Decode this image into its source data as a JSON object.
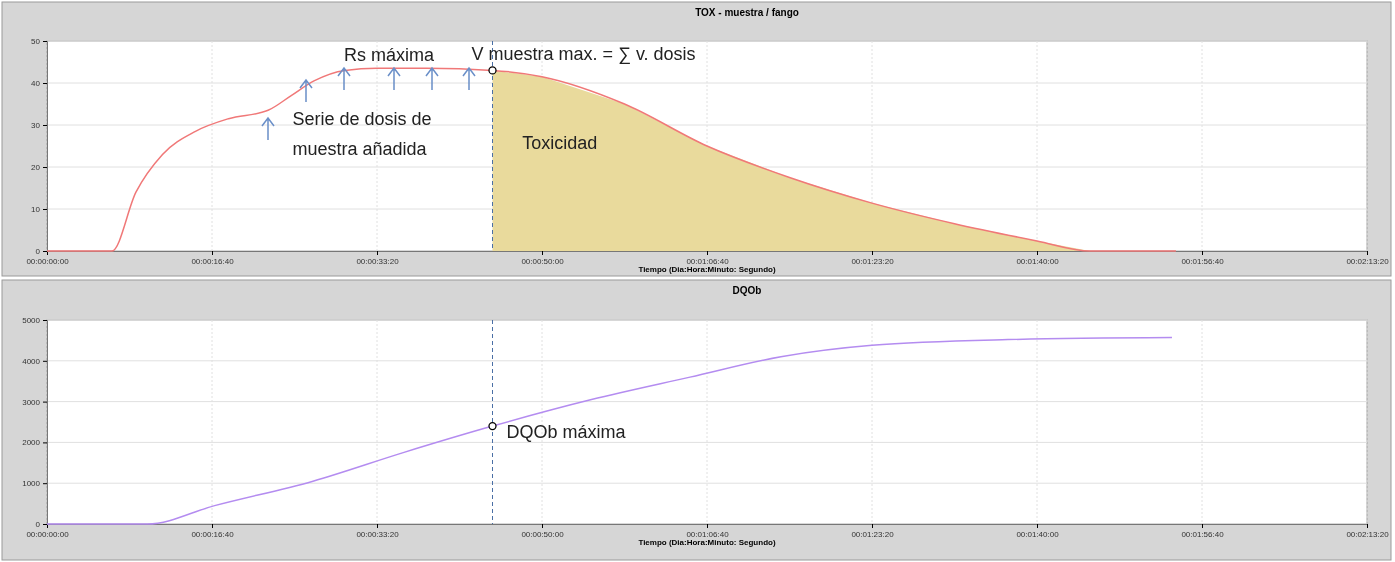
{
  "chart_data": [
    {
      "type": "line",
      "title": "TOX -  muestra / fango",
      "xlabel": "Tiempo (Dia:Hora:Minuto: Segundo)",
      "xlim": [
        "2000-01-01T00:00:00",
        "2000-01-01T02:13:20"
      ],
      "xticks": [
        {
          "value": "2000-01-01T00:00:00",
          "label": "00:00:00:00"
        },
        {
          "value": "2000-01-01T00:16:40",
          "label": "00:00:16:40"
        },
        {
          "value": "2000-01-01T00:33:20",
          "label": "00:00:33:20"
        },
        {
          "value": "2000-01-01T00:50:00",
          "label": "00:00:50:00"
        },
        {
          "value": "2000-01-01T01:06:40",
          "label": "00:01:06:40"
        },
        {
          "value": "2000-01-01T01:23:20",
          "label": "00:01:23:20"
        },
        {
          "value": "2000-01-01T01:40:00",
          "label": "00:01:40:00"
        },
        {
          "value": "2000-01-01T01:56:40",
          "label": "00:01:56:40"
        },
        {
          "value": "2000-01-01T02:13:20",
          "label": "00:02:13:20"
        }
      ],
      "ylim": [
        0,
        50
      ],
      "yticks": [
        0,
        10,
        20,
        30,
        40,
        50
      ],
      "grid": true,
      "series": [
        {
          "type": "area",
          "color": "#e9da9c",
          "x": [
            "2000-01-01T00:45:00",
            "2000-01-01T00:50:00",
            "2000-01-01T00:58:20",
            "2000-01-01T01:06:40",
            "2000-01-01T01:15:00",
            "2000-01-01T01:23:20",
            "2000-01-01T01:31:40",
            "2000-01-01T01:40:00",
            "2000-01-01T01:45:21"
          ],
          "values": [
            43,
            41.5,
            35,
            25,
            17.5,
            11.4,
            6.5,
            2.4,
            0
          ]
        },
        {
          "color": "#f07878",
          "x": [
            "2000-01-01T00:00:00",
            "2000-01-01T00:06:34",
            "2000-01-01T00:08:59",
            "2000-01-01T00:11:40",
            "2000-01-01T00:15:00",
            "2000-01-01T00:18:20",
            "2000-01-01T00:22:20",
            "2000-01-01T00:24:40",
            "2000-01-01T00:26:58",
            "2000-01-01T00:30:06",
            "2000-01-01T00:33:20",
            "2000-01-01T00:38:20",
            "2000-01-01T00:45:00",
            "2000-01-01T00:50:00",
            "2000-01-01T00:58:20",
            "2000-01-01T01:06:40",
            "2000-01-01T01:15:00",
            "2000-01-01T01:23:20",
            "2000-01-01T01:31:40",
            "2000-01-01T01:40:00",
            "2000-01-01T01:45:21",
            "2000-01-01T01:54:02"
          ],
          "values": [
            0,
            0,
            14,
            23,
            28.5,
            31.5,
            33.5,
            37,
            40.5,
            43,
            43.5,
            43.5,
            43,
            41.5,
            35,
            25,
            17.5,
            11.4,
            6.5,
            2.4,
            0,
            0
          ]
        }
      ],
      "ref_lines": [
        {
          "axis": "x",
          "value": "2000-01-01T00:45:00",
          "color": "#4a6fa5",
          "line_style": "dashed"
        }
      ],
      "annotations": [
        "Rs máxima",
        "Serie de dosis de muestra añadida",
        "Toxicidad",
        {
          "text": "V muestra max. = ∑ v. dosis",
          "x": "2000-01-01T00:45:00",
          "y": 43
        }
      ]
    },
    {
      "type": "line",
      "title": "DQOb",
      "xlabel": "Tiempo (Dia:Hora:Minuto: Segundo)",
      "xlim": [
        "2000-01-01T00:00:00",
        "2000-01-01T02:13:20"
      ],
      "xticks": [
        {
          "value": "2000-01-01T00:00:00",
          "label": "00:00:00:00"
        },
        {
          "value": "2000-01-01T00:16:40",
          "label": "00:00:16:40"
        },
        {
          "value": "2000-01-01T00:33:20",
          "label": "00:00:33:20"
        },
        {
          "value": "2000-01-01T00:50:00",
          "label": "00:00:50:00"
        },
        {
          "value": "2000-01-01T01:06:40",
          "label": "00:01:06:40"
        },
        {
          "value": "2000-01-01T01:23:20",
          "label": "00:01:23:20"
        },
        {
          "value": "2000-01-01T01:40:00",
          "label": "00:01:40:00"
        },
        {
          "value": "2000-01-01T01:56:40",
          "label": "00:01:56:40"
        },
        {
          "value": "2000-01-01T02:13:20",
          "label": "00:02:13:20"
        }
      ],
      "ylim": [
        0,
        5000
      ],
      "yticks": [
        0,
        1000,
        2000,
        3000,
        4000,
        5000
      ],
      "grid": true,
      "series": [
        {
          "color": "#b48cf0",
          "x": [
            "2000-01-01T00:00:00",
            "2000-01-01T00:10:08",
            "2000-01-01T00:16:56",
            "2000-01-01T00:26:52",
            "2000-01-01T00:35:59",
            "2000-01-01T00:45:00",
            "2000-01-01T00:55:00",
            "2000-01-01T01:04:57",
            "2000-01-01T01:14:08",
            "2000-01-01T01:23:20",
            "2000-01-01T01:37:04",
            "2000-01-01T01:53:38"
          ],
          "values": [
            0,
            0,
            450,
            1050,
            1750,
            2400,
            3050,
            3600,
            4100,
            4380,
            4520,
            4570
          ]
        }
      ],
      "ref_lines": [
        {
          "axis": "x",
          "value": "2000-01-01T00:45:00",
          "color": "#4a6fa5",
          "line_style": "dashed"
        }
      ],
      "annotations": [
        {
          "text": "DQOb máxima",
          "x": "2000-01-01T00:45:00",
          "y": 2400
        }
      ]
    }
  ]
}
